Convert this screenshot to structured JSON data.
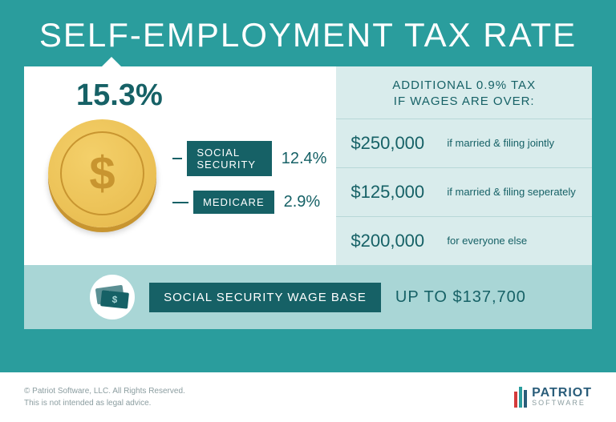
{
  "title": "SELF-EMPLOYMENT TAX RATE",
  "total_rate": "15.3%",
  "components": [
    {
      "label": "SOCIAL SECURITY",
      "value": "12.4%"
    },
    {
      "label": "MEDICARE",
      "value": "2.9%"
    }
  ],
  "additional": {
    "header_line1": "ADDITIONAL 0.9% TAX",
    "header_line2": "IF WAGES ARE OVER:",
    "thresholds": [
      {
        "amount": "$250,000",
        "desc": "if married & filing jointly"
      },
      {
        "amount": "$125,000",
        "desc": "if married & filing seperately"
      },
      {
        "amount": "$200,000",
        "desc": "for everyone else"
      }
    ]
  },
  "wage_base": {
    "label": "SOCIAL SECURITY WAGE BASE",
    "value": "UP TO $137,700"
  },
  "footer": {
    "copyright": "© Patriot Software, LLC. All Rights Reserved.",
    "disclaimer": "This is not intended as legal advice.",
    "brand": "PATRIOT",
    "brand_sub": "SOFTWARE"
  },
  "colors": {
    "bg": "#2a9d9d",
    "dark_teal": "#166166",
    "panel_right": "#d9ecec",
    "band": "#a9d6d6",
    "coin_light": "#f4d06a",
    "coin_dark": "#e6b84a",
    "coin_edge": "#c89530"
  }
}
